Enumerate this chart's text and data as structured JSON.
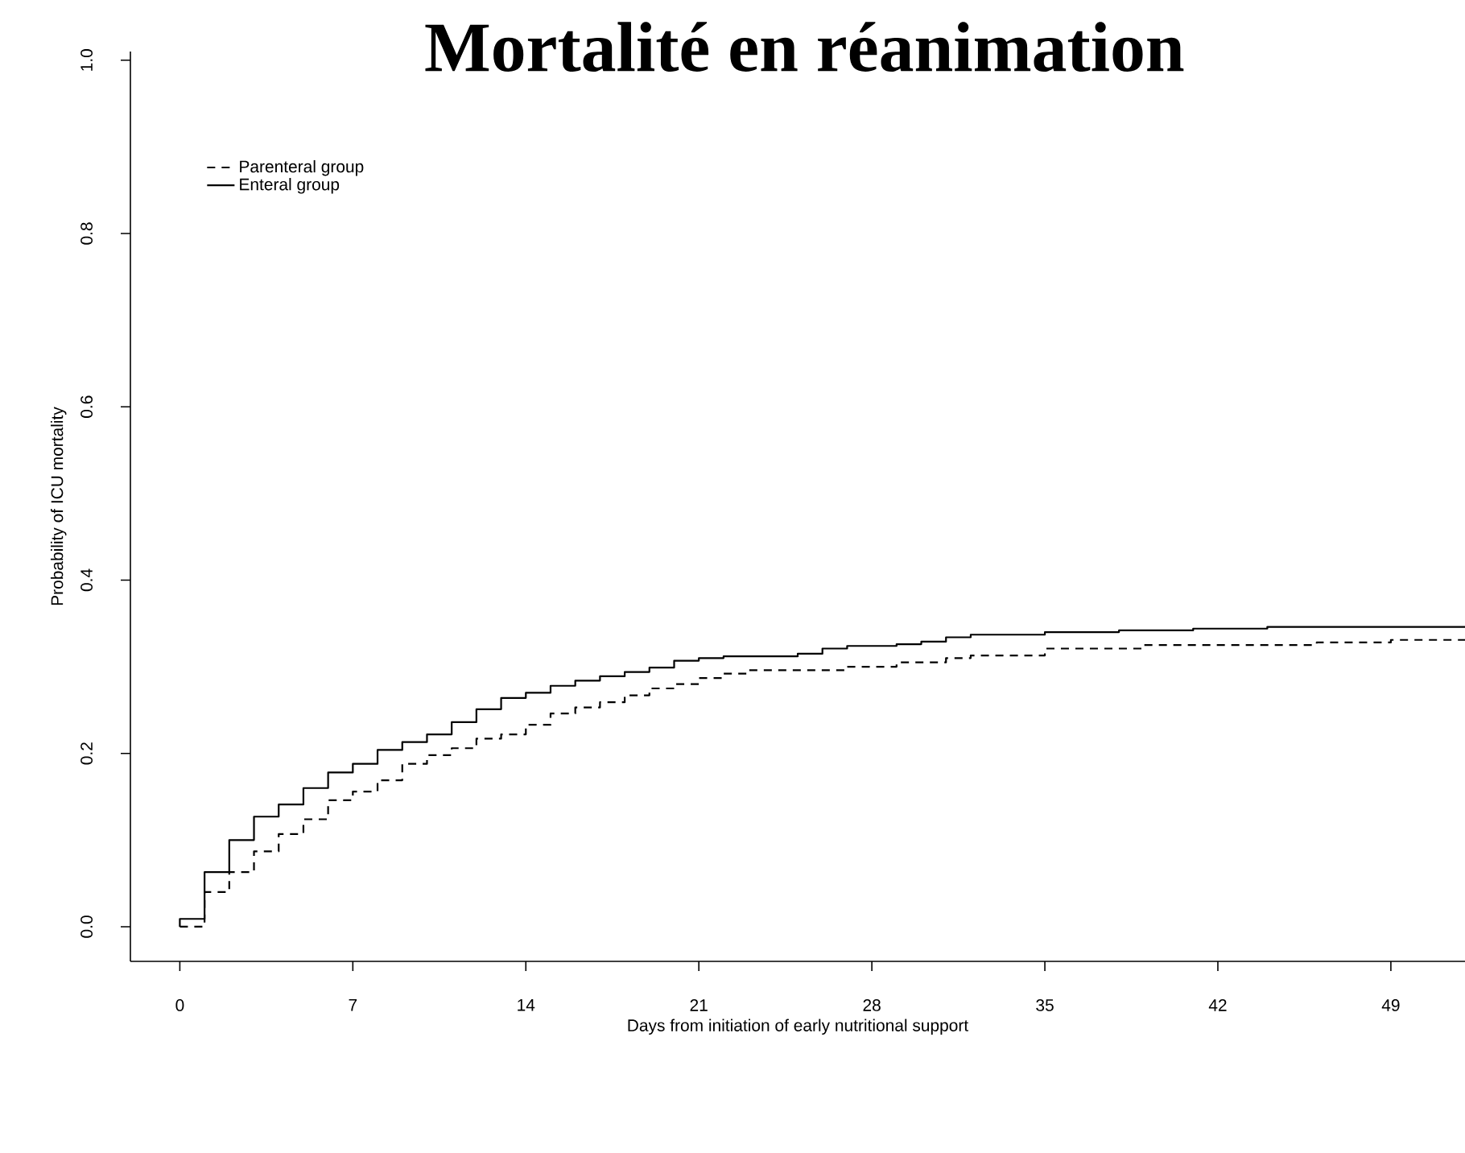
{
  "chart_data": {
    "type": "step",
    "title": "Mortalité en réanimation",
    "xlabel": "Days from initiation of early nutritional support",
    "ylabel": "Probability of ICU mortality",
    "xlim": [
      -2,
      52
    ],
    "ylim": [
      -0.04,
      1.01
    ],
    "xticks": [
      0,
      7,
      14,
      21,
      28,
      35,
      42,
      49
    ],
    "yticks": [
      {
        "value": 0,
        "label": "0.0"
      },
      {
        "value": 0.2,
        "label": "0.2"
      },
      {
        "value": 0.4,
        "label": "0.4"
      },
      {
        "value": 0.6,
        "label": "0.6"
      },
      {
        "value": 0.8,
        "label": "0.8"
      },
      {
        "value": 1,
        "label": "1.0"
      }
    ],
    "grid": false,
    "legend": "top left",
    "marker": "none",
    "series": [
      {
        "name": "Parenteral group",
        "color": "#000000",
        "line_style": "dashed",
        "x": [
          0,
          1,
          2,
          3,
          4,
          5,
          6,
          7,
          8,
          9,
          10,
          11,
          12,
          13,
          14,
          15,
          16,
          17,
          18,
          19,
          20,
          21,
          22,
          23,
          27,
          29,
          31,
          32,
          35,
          39,
          46,
          49,
          52
        ],
        "values": [
          0,
          0.04,
          0.063,
          0.087,
          0.107,
          0.124,
          0.146,
          0.156,
          0.169,
          0.188,
          0.198,
          0.206,
          0.217,
          0.222,
          0.233,
          0.246,
          0.253,
          0.259,
          0.267,
          0.275,
          0.28,
          0.287,
          0.292,
          0.296,
          0.3,
          0.305,
          0.31,
          0.313,
          0.321,
          0.325,
          0.328,
          0.331,
          0.331
        ]
      },
      {
        "name": "Enteral group",
        "color": "#000000",
        "line_style": "solid",
        "x": [
          0,
          0,
          1,
          2,
          3,
          4,
          5,
          6,
          7,
          8,
          9,
          10,
          11,
          12,
          13,
          14,
          15,
          16,
          17,
          18,
          19,
          20,
          21,
          22,
          25,
          26,
          27,
          29,
          30,
          31,
          32,
          35,
          38,
          41,
          44,
          52
        ],
        "values": [
          0,
          0.009,
          0.063,
          0.1,
          0.127,
          0.141,
          0.16,
          0.178,
          0.188,
          0.204,
          0.213,
          0.222,
          0.236,
          0.251,
          0.264,
          0.27,
          0.278,
          0.284,
          0.289,
          0.294,
          0.299,
          0.307,
          0.31,
          0.312,
          0.315,
          0.321,
          0.324,
          0.326,
          0.329,
          0.334,
          0.337,
          0.34,
          0.342,
          0.344,
          0.346,
          0.346
        ]
      }
    ]
  }
}
